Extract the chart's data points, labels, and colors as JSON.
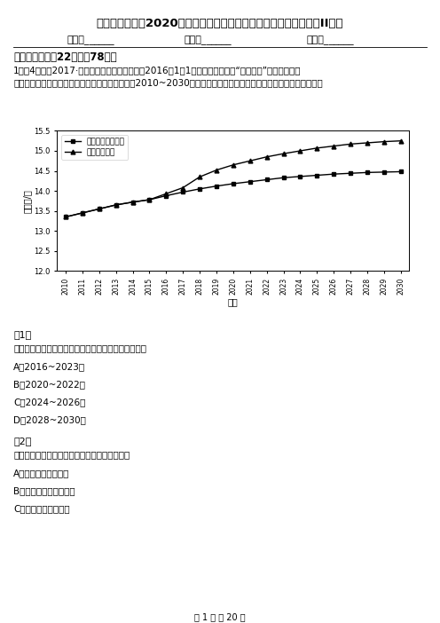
{
  "title": "四川省攀枝花市2020年（春秋版）高一下学期地理期中考试试卷（II）卷",
  "name_label": "姓名：______",
  "class_label": "班级：______",
  "score_label": "成绩：______",
  "section_title": "一、选择题（共22题；共78分）",
  "line1": "1．（4分）（2017·西藏模拟）全面二孩政策自2016年1月1日起施行，这是继“单独二孩”政策，之后的",
  "line2": "有一次人口政策调整。下图为放开二孩政策前后（2010~2030年）中国人口总量变化趋势对比，据此完成下列问题。",
  "chart_ylabel": "总人口/亿",
  "chart_xlabel": "年份",
  "chart_ylim": [
    12.0,
    15.5
  ],
  "chart_yticks": [
    12.0,
    12.5,
    13.0,
    13.5,
    14.0,
    14.5,
    15.0,
    15.5
  ],
  "chart_years": [
    2010,
    2011,
    2012,
    2013,
    2014,
    2015,
    2016,
    2017,
    2018,
    2019,
    2020,
    2021,
    2022,
    2023,
    2024,
    2025,
    2026,
    2027,
    2028,
    2029,
    2030
  ],
  "series1_label": "独生子女政策不变",
  "series1_values": [
    13.35,
    13.45,
    13.55,
    13.65,
    13.72,
    13.78,
    13.88,
    13.97,
    14.05,
    14.12,
    14.18,
    14.23,
    14.28,
    14.33,
    14.36,
    14.39,
    14.42,
    14.44,
    14.46,
    14.47,
    14.48
  ],
  "series2_label": "全面放开二孩",
  "series2_values": [
    13.35,
    13.45,
    13.55,
    13.65,
    13.72,
    13.78,
    13.93,
    14.08,
    14.35,
    14.52,
    14.65,
    14.75,
    14.85,
    14.93,
    15.0,
    15.07,
    15.12,
    15.17,
    15.2,
    15.23,
    15.25
  ],
  "sub1_label": "（1）",
  "sub1_q": "全面放开二孩后人口增长速度最快的时间段是（　　）",
  "optA": "A．2016~2023年",
  "optB": "B．2020~2022年",
  "optC": "C．2024~2026年",
  "optD": "D．2028~2030年",
  "sub2_label": "（2）",
  "sub2_q": "图示时间内，全面放开二孩政策会导致（　　）",
  "opt2A": "A．老年人口规模减少",
  "opt2B": "B．劳动力供给明显增加",
  "opt2C": "C．婚育妇女数量增加",
  "page_footer": "第 1 页 共 20 页",
  "bg_color": "#ffffff",
  "text_color": "#000000"
}
